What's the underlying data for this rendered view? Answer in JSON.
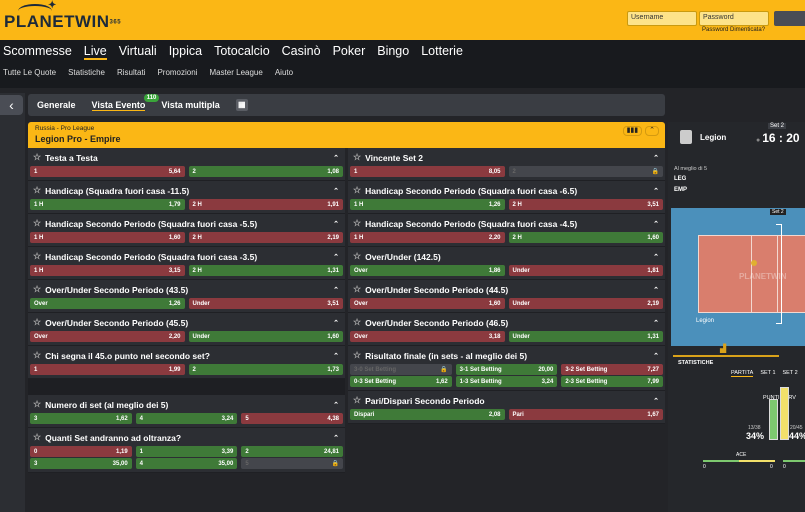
{
  "brand": {
    "name": "PLANETWIN",
    "suffix": "365"
  },
  "login": {
    "username_placeholder": "Username",
    "password_placeholder": "Password",
    "forgot": "Password Dimenticata?"
  },
  "nav": {
    "main": [
      "Scommesse",
      "Live",
      "Virtuali",
      "Ippica",
      "Totocalcio",
      "Casinò",
      "Poker",
      "Bingo",
      "Lotterie"
    ],
    "active": "Live",
    "sub": [
      "Tutte Le Quote",
      "Statistiche",
      "Risultati",
      "Promozioni",
      "Master League",
      "Aiuto"
    ]
  },
  "tabs": {
    "items": [
      "Generale",
      "Vista Evento",
      "Vista multipla"
    ],
    "active": "Vista Evento",
    "badge": "110"
  },
  "event": {
    "league": "Russia - Pro League",
    "name": "Legion Pro - Empire"
  },
  "colors": {
    "accent": "#fbb715",
    "odd_down": "#8b3a3f",
    "odd_up": "#3f7a38",
    "locked": "#44464c"
  },
  "markets_left": [
    {
      "title": "Testa a Testa",
      "rows": [
        [
          {
            "l": "1",
            "v": "5,64",
            "s": "r"
          },
          {
            "l": "2",
            "v": "1,08",
            "s": "g"
          }
        ]
      ]
    },
    {
      "title": "Handicap (Squadra fuori casa -11.5)",
      "rows": [
        [
          {
            "l": "1 H",
            "v": "1,79",
            "s": "g"
          },
          {
            "l": "2 H",
            "v": "1,91",
            "s": "r"
          }
        ]
      ]
    },
    {
      "title": "Handicap Secondo Periodo (Squadra fuori casa -5.5)",
      "rows": [
        [
          {
            "l": "1 H",
            "v": "1,60",
            "s": "r"
          },
          {
            "l": "2 H",
            "v": "2,19",
            "s": "r"
          }
        ]
      ]
    },
    {
      "title": "Handicap Secondo Periodo (Squadra fuori casa -3.5)",
      "rows": [
        [
          {
            "l": "1 H",
            "v": "3,15",
            "s": "r"
          },
          {
            "l": "2 H",
            "v": "1,31",
            "s": "g"
          }
        ]
      ]
    },
    {
      "title": "Over/Under Secondo Periodo (43.5)",
      "rows": [
        [
          {
            "l": "Over",
            "v": "1,26",
            "s": "g"
          },
          {
            "l": "Under",
            "v": "3,51",
            "s": "r"
          }
        ]
      ]
    },
    {
      "title": "Over/Under Secondo Periodo (45.5)",
      "rows": [
        [
          {
            "l": "Over",
            "v": "2,20",
            "s": "r"
          },
          {
            "l": "Under",
            "v": "1,60",
            "s": "g"
          }
        ]
      ]
    },
    {
      "title": "Chi segna il 45.o punto nel secondo set?",
      "rows": [
        [
          {
            "l": "1",
            "v": "1,99",
            "s": "r"
          },
          {
            "l": "2",
            "v": "1,73",
            "s": "g"
          }
        ]
      ]
    },
    {
      "gap": true
    },
    {
      "title": "Numero di set (al meglio dei 5)",
      "rows": [
        [
          {
            "l": "3",
            "v": "1,62",
            "s": "g"
          },
          {
            "l": "4",
            "v": "3,24",
            "s": "g"
          },
          {
            "l": "5",
            "v": "4,38",
            "s": "r"
          }
        ]
      ]
    },
    {
      "title": "Quanti Set andranno ad oltranza?",
      "rows": [
        [
          {
            "l": "0",
            "v": "1,19",
            "s": "r"
          },
          {
            "l": "1",
            "v": "3,39",
            "s": "g"
          },
          {
            "l": "2",
            "v": "24,81",
            "s": "g"
          }
        ],
        [
          {
            "l": "3",
            "v": "35,00",
            "s": "g"
          },
          {
            "l": "4",
            "v": "35,00",
            "s": "g"
          },
          {
            "l": "5",
            "v": "",
            "s": "x"
          }
        ]
      ]
    }
  ],
  "markets_right": [
    {
      "title": "Vincente Set 2",
      "rows": [
        [
          {
            "l": "1",
            "v": "8,05",
            "s": "r"
          },
          {
            "l": "2",
            "v": "",
            "s": "x"
          }
        ]
      ]
    },
    {
      "title": "Handicap Secondo Periodo (Squadra fuori casa -6.5)",
      "rows": [
        [
          {
            "l": "1 H",
            "v": "1,26",
            "s": "g"
          },
          {
            "l": "2 H",
            "v": "3,51",
            "s": "r"
          }
        ]
      ]
    },
    {
      "title": "Handicap Secondo Periodo (Squadra fuori casa -4.5)",
      "rows": [
        [
          {
            "l": "1 H",
            "v": "2,20",
            "s": "r"
          },
          {
            "l": "2 H",
            "v": "1,60",
            "s": "g"
          }
        ]
      ]
    },
    {
      "title": "Over/Under (142.5)",
      "rows": [
        [
          {
            "l": "Over",
            "v": "1,86",
            "s": "g"
          },
          {
            "l": "Under",
            "v": "1,81",
            "s": "r"
          }
        ]
      ]
    },
    {
      "title": "Over/Under Secondo Periodo (44.5)",
      "rows": [
        [
          {
            "l": "Over",
            "v": "1,60",
            "s": "r"
          },
          {
            "l": "Under",
            "v": "2,19",
            "s": "r"
          }
        ]
      ]
    },
    {
      "title": "Over/Under Secondo Periodo (46.5)",
      "rows": [
        [
          {
            "l": "Over",
            "v": "3,18",
            "s": "r"
          },
          {
            "l": "Under",
            "v": "1,31",
            "s": "g"
          }
        ]
      ]
    },
    {
      "title": "Risultato finale (in sets - al meglio dei 5)",
      "rows": [
        [
          {
            "l": "3-0 Set Betting",
            "v": "",
            "s": "x"
          },
          {
            "l": "3-1 Set Betting",
            "v": "20,00",
            "s": "g"
          },
          {
            "l": "3-2 Set Betting",
            "v": "7,27",
            "s": "r"
          }
        ],
        [
          {
            "l": "0-3 Set Betting",
            "v": "1,62",
            "s": "g"
          },
          {
            "l": "1-3 Set Betting",
            "v": "3,24",
            "s": "g"
          },
          {
            "l": "2-3 Set Betting",
            "v": "7,99",
            "s": "g"
          }
        ]
      ]
    },
    {
      "title": "Pari/Dispari Secondo Periodo",
      "rows": [
        [
          {
            "l": "Dispari",
            "v": "2,08",
            "s": "g"
          },
          {
            "l": "Pari",
            "v": "1,67",
            "s": "r"
          }
        ]
      ]
    }
  ],
  "scoreboard": {
    "team": "Legion",
    "set": "Set 2",
    "clock": "16 : 20",
    "best_of": "Al meglio di 5",
    "abbr": [
      "LEG",
      "EMP"
    ],
    "court_set": "Set 2",
    "court_team": "Legion",
    "watermark": "PLANETWIN"
  },
  "stats": {
    "title": "STATISTICHE",
    "tabs": [
      "PARTITA",
      "SET 1",
      "SET 2"
    ],
    "active": "PARTITA",
    "serve_label": "PUNTI SERV",
    "home": {
      "frac": "13/38",
      "pct": "34%",
      "value": 34
    },
    "away": {
      "frac": "20/45",
      "pct": "44%",
      "value": 44
    },
    "ace_label": "ACE",
    "ace": [
      "0",
      "0"
    ],
    "err": [
      "0"
    ]
  }
}
